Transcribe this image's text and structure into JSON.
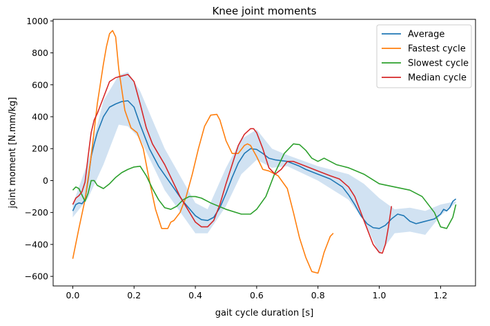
{
  "chart_data": {
    "type": "line",
    "title": "Knee joint moments",
    "xlabel": "gait cycle duration [s]",
    "ylabel": "joint moment [N.mm/kg]",
    "xlim": [
      -0.064,
      1.314
    ],
    "ylim": [
      -660,
      1010
    ],
    "xticks": [
      0.0,
      0.2,
      0.4,
      0.6,
      0.8,
      1.0,
      1.2
    ],
    "xtick_labels": [
      "0.0",
      "0.2",
      "0.4",
      "0.6",
      "0.8",
      "1.0",
      "1.2"
    ],
    "yticks": [
      -600,
      -400,
      -200,
      0,
      200,
      400,
      600,
      800,
      1000
    ],
    "ytick_labels": [
      "−600",
      "−400",
      "−200",
      "0",
      "200",
      "400",
      "600",
      "800",
      "1000"
    ],
    "grid": false,
    "legend_position": "top-right",
    "band": {
      "color": "#c6dbef",
      "x": [
        0.0,
        0.05,
        0.1,
        0.15,
        0.18,
        0.22,
        0.3,
        0.4,
        0.44,
        0.5,
        0.55,
        0.6,
        0.65,
        0.7,
        0.8,
        0.9,
        0.95,
        1.0,
        1.05,
        1.1,
        1.15,
        1.2,
        1.25
      ],
      "upper": [
        -150,
        120,
        500,
        660,
        680,
        560,
        200,
        -140,
        -180,
        80,
        260,
        320,
        200,
        160,
        90,
        40,
        -20,
        -110,
        -180,
        -170,
        -190,
        -150,
        -130
      ],
      "lower": [
        -230,
        -110,
        100,
        350,
        340,
        260,
        -60,
        -330,
        -330,
        -160,
        40,
        130,
        80,
        90,
        0,
        -120,
        -250,
        -460,
        -330,
        -320,
        -340,
        -220,
        -140
      ]
    },
    "series": [
      {
        "name": "Average",
        "color": "#1f77b4",
        "x": [
          0.0,
          0.01,
          0.02,
          0.03,
          0.04,
          0.05,
          0.06,
          0.07,
          0.08,
          0.1,
          0.12,
          0.14,
          0.16,
          0.18,
          0.2,
          0.22,
          0.25,
          0.28,
          0.32,
          0.36,
          0.4,
          0.42,
          0.44,
          0.46,
          0.48,
          0.5,
          0.52,
          0.54,
          0.56,
          0.58,
          0.6,
          0.62,
          0.64,
          0.66,
          0.68,
          0.7,
          0.72,
          0.74,
          0.76,
          0.8,
          0.84,
          0.88,
          0.9,
          0.92,
          0.94,
          0.96,
          0.98,
          1.0,
          1.02,
          1.04,
          1.06,
          1.08,
          1.1,
          1.12,
          1.14,
          1.16,
          1.18,
          1.2,
          1.21,
          1.22,
          1.23,
          1.24,
          1.25
        ],
        "y": [
          -190,
          -150,
          -140,
          -145,
          -120,
          0,
          150,
          230,
          300,
          400,
          460,
          480,
          495,
          500,
          460,
          350,
          200,
          90,
          -20,
          -130,
          -220,
          -245,
          -250,
          -230,
          -170,
          -80,
          20,
          110,
          170,
          200,
          195,
          170,
          140,
          130,
          125,
          120,
          105,
          90,
          70,
          40,
          10,
          -40,
          -90,
          -150,
          -220,
          -270,
          -295,
          -300,
          -280,
          -240,
          -210,
          -220,
          -255,
          -270,
          -260,
          -250,
          -240,
          -210,
          -180,
          -190,
          -170,
          -130,
          -115
        ]
      },
      {
        "name": "Fastest cycle",
        "color": "#ff7f0e",
        "x": [
          0.0,
          0.02,
          0.04,
          0.06,
          0.08,
          0.1,
          0.11,
          0.12,
          0.13,
          0.14,
          0.15,
          0.17,
          0.19,
          0.21,
          0.23,
          0.25,
          0.27,
          0.29,
          0.31,
          0.32,
          0.33,
          0.35,
          0.37,
          0.39,
          0.41,
          0.43,
          0.45,
          0.47,
          0.48,
          0.5,
          0.52,
          0.54,
          0.56,
          0.57,
          0.58,
          0.6,
          0.62,
          0.64,
          0.67,
          0.7,
          0.72,
          0.74,
          0.76,
          0.78,
          0.8,
          0.81,
          0.82,
          0.83,
          0.84,
          0.85
        ],
        "y": [
          -490,
          -300,
          -120,
          150,
          480,
          730,
          840,
          920,
          940,
          900,
          700,
          440,
          330,
          300,
          200,
          0,
          -180,
          -300,
          -300,
          -260,
          -250,
          -200,
          -100,
          40,
          200,
          340,
          410,
          415,
          380,
          250,
          170,
          170,
          220,
          230,
          220,
          150,
          70,
          60,
          30,
          -50,
          -200,
          -360,
          -480,
          -570,
          -580,
          -520,
          -450,
          -400,
          -350,
          -330
        ]
      },
      {
        "name": "Slowest cycle",
        "color": "#2ca02c",
        "x": [
          0.0,
          0.01,
          0.02,
          0.03,
          0.04,
          0.05,
          0.06,
          0.07,
          0.08,
          0.1,
          0.12,
          0.14,
          0.16,
          0.18,
          0.2,
          0.22,
          0.24,
          0.26,
          0.28,
          0.3,
          0.32,
          0.34,
          0.36,
          0.38,
          0.4,
          0.42,
          0.45,
          0.5,
          0.55,
          0.58,
          0.6,
          0.63,
          0.66,
          0.69,
          0.72,
          0.74,
          0.76,
          0.78,
          0.8,
          0.82,
          0.84,
          0.86,
          0.88,
          0.9,
          0.95,
          1.0,
          1.05,
          1.1,
          1.14,
          1.18,
          1.2,
          1.22,
          1.24,
          1.25
        ],
        "y": [
          -60,
          -40,
          -50,
          -90,
          -130,
          -80,
          0,
          0,
          -30,
          -50,
          -20,
          20,
          50,
          70,
          85,
          90,
          30,
          -50,
          -120,
          -170,
          -180,
          -160,
          -120,
          -100,
          -100,
          -110,
          -140,
          -180,
          -210,
          -210,
          -180,
          -100,
          50,
          170,
          230,
          225,
          190,
          140,
          120,
          140,
          120,
          100,
          90,
          80,
          40,
          -20,
          -40,
          -60,
          -100,
          -200,
          -290,
          -300,
          -230,
          -150
        ]
      },
      {
        "name": "Median cycle",
        "color": "#d62728",
        "x": [
          0.0,
          0.01,
          0.02,
          0.03,
          0.04,
          0.05,
          0.06,
          0.07,
          0.08,
          0.1,
          0.12,
          0.14,
          0.16,
          0.18,
          0.2,
          0.22,
          0.24,
          0.26,
          0.3,
          0.35,
          0.4,
          0.42,
          0.44,
          0.46,
          0.48,
          0.5,
          0.52,
          0.54,
          0.56,
          0.58,
          0.59,
          0.6,
          0.62,
          0.64,
          0.66,
          0.68,
          0.7,
          0.72,
          0.76,
          0.8,
          0.84,
          0.87,
          0.9,
          0.92,
          0.94,
          0.96,
          0.98,
          1.0,
          1.01,
          1.02,
          1.03,
          1.04
        ],
        "y": [
          -150,
          -110,
          -95,
          -70,
          -10,
          150,
          300,
          380,
          420,
          520,
          620,
          645,
          655,
          665,
          620,
          480,
          330,
          230,
          100,
          -100,
          -260,
          -290,
          -290,
          -250,
          -150,
          -20,
          100,
          220,
          290,
          325,
          325,
          300,
          200,
          80,
          40,
          70,
          120,
          120,
          90,
          60,
          30,
          10,
          -40,
          -100,
          -200,
          -300,
          -400,
          -450,
          -455,
          -400,
          -290,
          -160
        ]
      }
    ]
  }
}
